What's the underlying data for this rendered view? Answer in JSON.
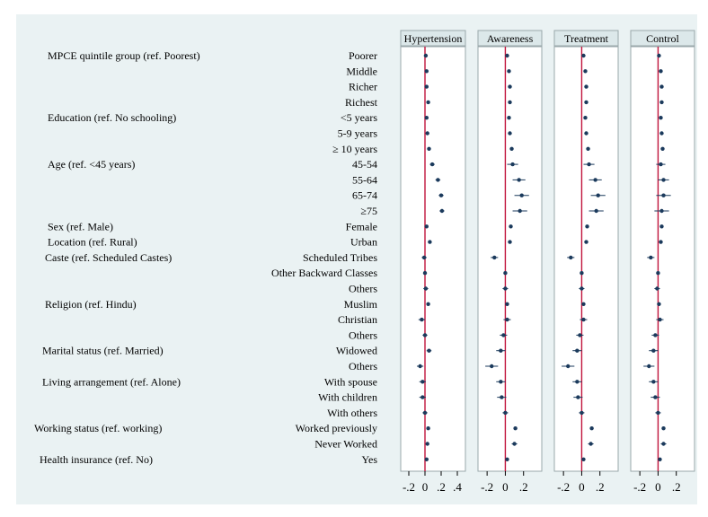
{
  "chart_data": {
    "type": "scatter",
    "subtype": "forest-plot",
    "reference_line": 0,
    "reference_line_color": "#c0143c",
    "point_color": "#1b3a5c",
    "panel_background": "#eaf2f3",
    "group_labels": [
      {
        "text": "MPCE quintile group (ref. Poorest)",
        "row": 0
      },
      {
        "text": "Education (ref. No schooling)",
        "row": 4
      },
      {
        "text": "Age (ref. <45 years)",
        "row": 7
      },
      {
        "text": "Sex (ref. Male)",
        "row": 11
      },
      {
        "text": "Location (ref. Rural)",
        "row": 12
      },
      {
        "text": "Caste (ref. Scheduled Castes)",
        "row": 13
      },
      {
        "text": "Religion (ref. Hindu)",
        "row": 16
      },
      {
        "text": "Marital status (ref. Married)",
        "row": 19
      },
      {
        "text": "Living arrangement (ref. Alone)",
        "row": 21
      },
      {
        "text": "Working status (ref. working)",
        "row": 24
      },
      {
        "text": "Health insurance (ref. No)",
        "row": 26
      }
    ],
    "categories": [
      "Poorer",
      "Middle",
      "Richer",
      "Richest",
      "<5 years",
      "5-9 years",
      "≥ 10 years",
      "45-54",
      "55-64",
      "65-74",
      "≥75",
      "Female",
      "Urban",
      "Scheduled Tribes",
      "Other Backward Classes",
      "Others",
      "Muslim",
      "Christian",
      "Others",
      "Widowed",
      "Others",
      "With spouse",
      "With children",
      "With others",
      "Worked previously",
      "Never Worked",
      "Yes"
    ],
    "series": [
      {
        "name": "Hypertension",
        "xlim": [
          -0.3,
          0.5
        ],
        "ticks": [
          -0.2,
          0,
          0.2,
          0.4
        ],
        "tick_labels": [
          "-.2",
          "0",
          ".2",
          ".4"
        ],
        "estimates": [
          0.01,
          0.02,
          0.02,
          0.04,
          0.02,
          0.03,
          0.05,
          0.09,
          0.16,
          0.2,
          0.21,
          0.02,
          0.06,
          -0.01,
          0.0,
          0.01,
          0.04,
          -0.04,
          0.0,
          0.05,
          -0.06,
          -0.03,
          -0.03,
          0.0,
          0.04,
          0.03,
          0.02
        ],
        "lower": [
          -0.01,
          0.0,
          0.0,
          0.02,
          0.0,
          0.01,
          0.03,
          0.06,
          0.13,
          0.17,
          0.18,
          0.01,
          0.04,
          -0.04,
          -0.02,
          -0.02,
          0.02,
          -0.08,
          -0.03,
          0.02,
          -0.1,
          -0.07,
          -0.07,
          -0.03,
          0.02,
          0.01,
          0.0
        ],
        "upper": [
          0.03,
          0.04,
          0.04,
          0.06,
          0.04,
          0.05,
          0.07,
          0.12,
          0.19,
          0.23,
          0.24,
          0.03,
          0.08,
          0.02,
          0.02,
          0.04,
          0.06,
          0.0,
          0.03,
          0.08,
          -0.02,
          0.01,
          0.01,
          0.03,
          0.06,
          0.05,
          0.04
        ]
      },
      {
        "name": "Awareness",
        "xlim": [
          -0.3,
          0.4
        ],
        "ticks": [
          -0.2,
          0,
          0.2
        ],
        "tick_labels": [
          "-.2",
          "0",
          ".2"
        ],
        "estimates": [
          0.02,
          0.04,
          0.05,
          0.05,
          0.04,
          0.05,
          0.07,
          0.08,
          0.15,
          0.18,
          0.16,
          0.06,
          0.05,
          -0.12,
          0.0,
          0.0,
          0.02,
          0.02,
          -0.02,
          -0.05,
          -0.15,
          -0.05,
          -0.04,
          0.0,
          0.11,
          0.1,
          0.02
        ],
        "lower": [
          0.0,
          0.02,
          0.03,
          0.03,
          0.02,
          0.03,
          0.05,
          0.02,
          0.08,
          0.1,
          0.08,
          0.05,
          0.03,
          -0.16,
          -0.02,
          -0.03,
          0.0,
          -0.02,
          -0.06,
          -0.1,
          -0.22,
          -0.1,
          -0.09,
          -0.03,
          0.09,
          0.07,
          0.0
        ],
        "upper": [
          0.04,
          0.06,
          0.07,
          0.07,
          0.06,
          0.07,
          0.09,
          0.14,
          0.22,
          0.26,
          0.24,
          0.07,
          0.07,
          -0.08,
          0.02,
          0.03,
          0.04,
          0.06,
          0.02,
          0.0,
          -0.08,
          0.0,
          0.01,
          0.03,
          0.13,
          0.13,
          0.04
        ]
      },
      {
        "name": "Treatment",
        "xlim": [
          -0.3,
          0.4
        ],
        "ticks": [
          -0.2,
          0,
          0.2
        ],
        "tick_labels": [
          "-.2",
          "0",
          ".2"
        ],
        "estimates": [
          0.02,
          0.04,
          0.05,
          0.05,
          0.04,
          0.05,
          0.07,
          0.08,
          0.15,
          0.18,
          0.16,
          0.06,
          0.05,
          -0.12,
          0.0,
          0.0,
          0.02,
          0.02,
          -0.02,
          -0.05,
          -0.15,
          -0.05,
          -0.04,
          0.0,
          0.11,
          0.1,
          0.02
        ],
        "lower": [
          0.0,
          0.02,
          0.03,
          0.03,
          0.02,
          0.03,
          0.05,
          0.02,
          0.08,
          0.1,
          0.08,
          0.05,
          0.03,
          -0.16,
          -0.02,
          -0.03,
          0.0,
          -0.02,
          -0.06,
          -0.1,
          -0.22,
          -0.1,
          -0.09,
          -0.03,
          0.09,
          0.07,
          0.0
        ],
        "upper": [
          0.04,
          0.06,
          0.07,
          0.07,
          0.06,
          0.07,
          0.09,
          0.14,
          0.22,
          0.26,
          0.24,
          0.07,
          0.07,
          -0.08,
          0.02,
          0.03,
          0.04,
          0.06,
          0.02,
          0.0,
          -0.08,
          0.0,
          0.01,
          0.03,
          0.13,
          0.13,
          0.04
        ]
      },
      {
        "name": "Control",
        "xlim": [
          -0.3,
          0.4
        ],
        "ticks": [
          -0.2,
          0,
          0.2
        ],
        "tick_labels": [
          "-.2",
          "0",
          ".2"
        ],
        "estimates": [
          0.01,
          0.03,
          0.04,
          0.04,
          0.03,
          0.04,
          0.05,
          0.03,
          0.06,
          0.06,
          0.04,
          0.04,
          0.03,
          -0.08,
          0.0,
          -0.01,
          0.01,
          0.02,
          -0.03,
          -0.05,
          -0.1,
          -0.05,
          -0.03,
          0.0,
          0.06,
          0.06,
          0.02
        ],
        "lower": [
          -0.01,
          0.01,
          0.02,
          0.02,
          0.01,
          0.02,
          0.03,
          -0.02,
          0.0,
          -0.02,
          -0.04,
          0.03,
          0.01,
          -0.12,
          -0.02,
          -0.04,
          -0.01,
          -0.02,
          -0.07,
          -0.1,
          -0.16,
          -0.1,
          -0.08,
          -0.03,
          0.04,
          0.03,
          0.0
        ],
        "upper": [
          0.03,
          0.05,
          0.06,
          0.06,
          0.05,
          0.06,
          0.07,
          0.08,
          0.12,
          0.14,
          0.12,
          0.05,
          0.05,
          -0.04,
          0.02,
          0.02,
          0.03,
          0.06,
          0.01,
          0.0,
          -0.04,
          0.0,
          0.02,
          0.03,
          0.08,
          0.09,
          0.04
        ]
      }
    ]
  }
}
